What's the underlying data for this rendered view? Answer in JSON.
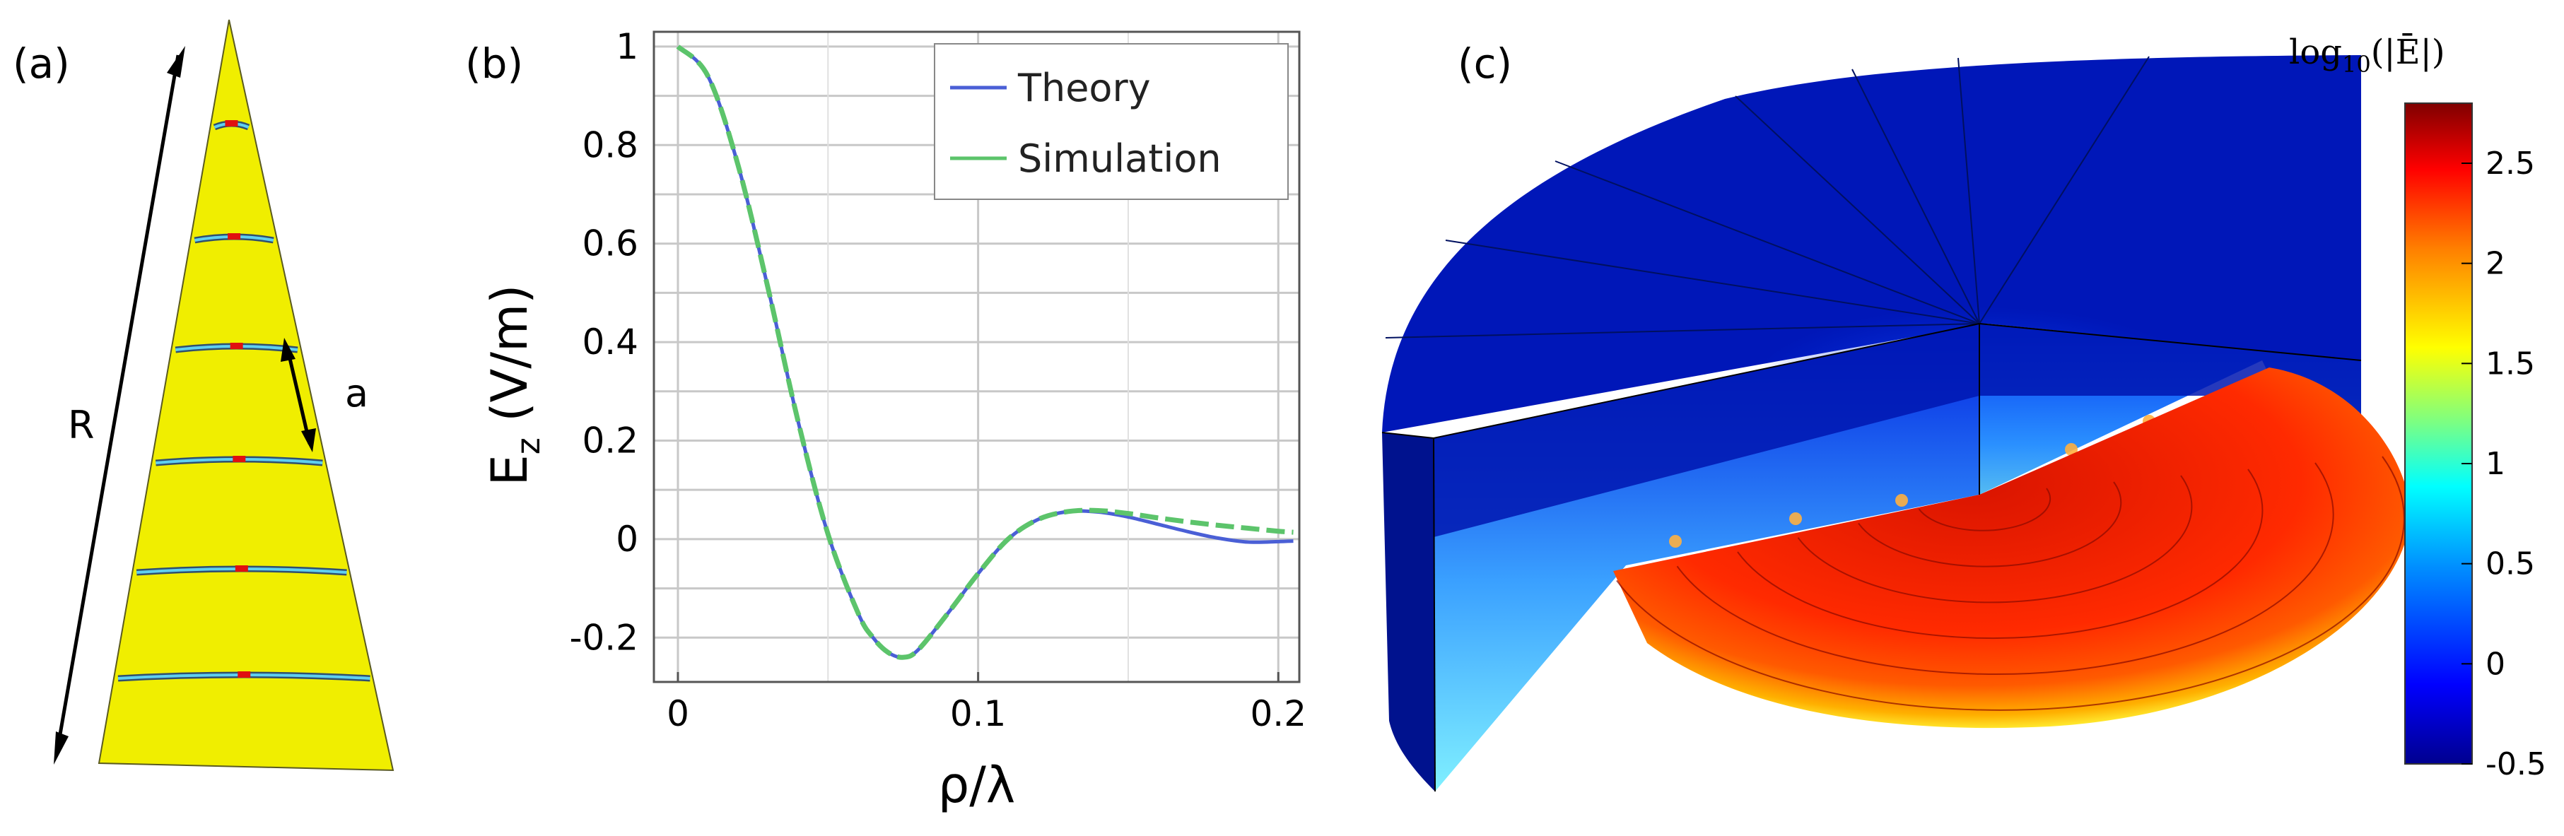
{
  "panels": {
    "a": {
      "label": "(a)",
      "dim_R": "R",
      "dim_a": "a",
      "rings": 6
    },
    "b": {
      "label": "(b)"
    },
    "c": {
      "label": "(c)"
    }
  },
  "chart_data": {
    "type": "line",
    "title": "",
    "xlabel": "ρ/λ",
    "ylabel_main": "E",
    "ylabel_sub": "z",
    "ylabel_unit": " (V/m)",
    "xlim": [
      -0.008,
      0.207
    ],
    "ylim": [
      -0.29,
      1.03
    ],
    "xticks": [
      0,
      0.1,
      0.2
    ],
    "xtick_labels": [
      "0",
      "0.1",
      "0.2"
    ],
    "yticks": [
      -0.2,
      0,
      0.2,
      0.4,
      0.6,
      0.8,
      1
    ],
    "ytick_labels": [
      "-0.2",
      "0",
      "0.2",
      "0.4",
      "0.6",
      "0.8",
      "1"
    ],
    "grid": true,
    "legend": "top-right",
    "series": [
      {
        "name": "Theory",
        "color": "#4a5fd6",
        "style": "solid",
        "x": [
          0,
          0.01,
          0.02,
          0.03,
          0.04,
          0.05,
          0.06,
          0.065,
          0.07,
          0.075,
          0.08,
          0.09,
          0.1,
          0.11,
          0.12,
          0.13,
          0.14,
          0.15,
          0.16,
          0.17,
          0.18,
          0.19,
          0.2,
          0.205
        ],
        "y": [
          1.0,
          0.94,
          0.76,
          0.51,
          0.24,
          0.01,
          -0.15,
          -0.2,
          -0.23,
          -0.24,
          -0.225,
          -0.15,
          -0.07,
          0.0,
          0.04,
          0.056,
          0.055,
          0.045,
          0.03,
          0.015,
          0.002,
          -0.006,
          -0.005,
          -0.004
        ]
      },
      {
        "name": "Simulation",
        "color": "#5cc46b",
        "style": "dashed",
        "x": [
          0,
          0.01,
          0.02,
          0.03,
          0.04,
          0.05,
          0.06,
          0.065,
          0.07,
          0.075,
          0.08,
          0.09,
          0.1,
          0.11,
          0.12,
          0.13,
          0.14,
          0.15,
          0.16,
          0.17,
          0.18,
          0.19,
          0.2,
          0.205
        ],
        "y": [
          1.0,
          0.94,
          0.76,
          0.51,
          0.24,
          0.01,
          -0.15,
          -0.2,
          -0.23,
          -0.24,
          -0.225,
          -0.15,
          -0.07,
          0.0,
          0.04,
          0.056,
          0.058,
          0.052,
          0.043,
          0.035,
          0.028,
          0.022,
          0.016,
          0.014
        ]
      }
    ]
  },
  "colorbar": {
    "title": "log",
    "title_sub": "10",
    "title_arg": "(|Ē|)",
    "ticks": [
      2.5,
      2,
      1.5,
      1,
      0.5,
      0,
      -0.5
    ],
    "tick_labels": [
      "2.5",
      "2",
      "1.5",
      "1",
      "0.5",
      "0",
      "-0.5"
    ],
    "range": [
      -0.5,
      2.8
    ]
  }
}
